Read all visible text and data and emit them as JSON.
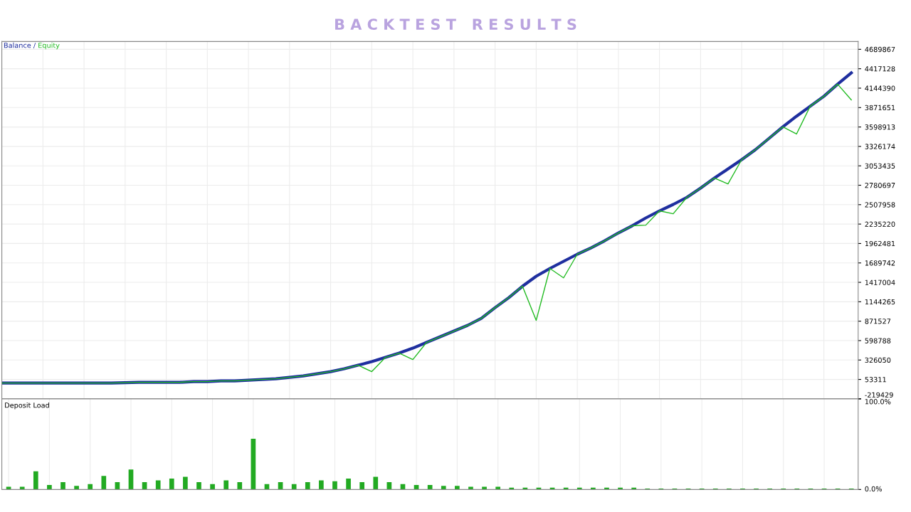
{
  "chart_data": [
    {
      "type": "line",
      "title": "B A C K T E S T   R E S U L T S",
      "categories": [
        null,
        null,
        null,
        null,
        null,
        null,
        null,
        null,
        null,
        null,
        null,
        null,
        null,
        null,
        null,
        null,
        null,
        null,
        null,
        null,
        null,
        null,
        null,
        null,
        null,
        null,
        null,
        null,
        null,
        null,
        null,
        null,
        null,
        null,
        null,
        null,
        null,
        null,
        null,
        null,
        null,
        null,
        null,
        null,
        null,
        null,
        null,
        null,
        null,
        null,
        null,
        null,
        null,
        null,
        null,
        null,
        null,
        null,
        null,
        null,
        null,
        null,
        null
      ],
      "series": [
        {
          "name": "Balance",
          "color": "#1f2f9f",
          "values": [
            3000,
            3000,
            3000,
            3000,
            3000,
            3000,
            3000,
            3000,
            3000,
            8000,
            13000,
            13000,
            13000,
            13000,
            23000,
            23000,
            33000,
            33000,
            43000,
            53000,
            63000,
            83000,
            103000,
            133000,
            163000,
            203000,
            253000,
            303000,
            363000,
            423000,
            493000,
            573000,
            653000,
            733000,
            813000,
            912000,
            1062000,
            1202000,
            1362000,
            1502000,
            1612000,
            1712000,
            1812000,
            1901000,
            2001000,
            2111000,
            2211000,
            2321000,
            2421000,
            2511000,
            2611000,
            2741000,
            2881000,
            3010000,
            3140000,
            3280000,
            3440000,
            3600000,
            3750000,
            3890000,
            4030000,
            4200000,
            4360000
          ]
        },
        {
          "name": "Equity",
          "color": "#22bb22",
          "values": [
            3000,
            3000,
            3000,
            3000,
            3000,
            3000,
            3000,
            3000,
            3000,
            8000,
            13000,
            13000,
            13000,
            13000,
            23000,
            23000,
            33000,
            33000,
            43000,
            53000,
            63000,
            83000,
            103000,
            133000,
            163000,
            203000,
            253000,
            163000,
            363000,
            423000,
            333000,
            573000,
            653000,
            733000,
            813000,
            912000,
            1062000,
            1202000,
            1362000,
            882000,
            1612000,
            1480000,
            1812000,
            1901000,
            2001000,
            2111000,
            2211000,
            2220000,
            2421000,
            2380000,
            2611000,
            2741000,
            2881000,
            2800000,
            3140000,
            3280000,
            3440000,
            3600000,
            3500000,
            3890000,
            4030000,
            4200000,
            3980000
          ]
        }
      ],
      "ylim": [
        -219429,
        4800000
      ],
      "yticks": [
        -219429,
        53311,
        326050,
        598788,
        871527,
        1144265,
        1417004,
        1689742,
        1962481,
        2235220,
        2507958,
        2780697,
        3053435,
        3326174,
        3598913,
        3871651,
        4144390,
        4417128,
        4689867
      ],
      "grid": true,
      "legend": "top left",
      "tick_labels": "y",
      "annotations": [
        "/"
      ]
    },
    {
      "type": "bar",
      "title": "Deposit Load",
      "categories": [
        null,
        null,
        null,
        null,
        null,
        null,
        null,
        null,
        null,
        null,
        null,
        null,
        null,
        null,
        null,
        null,
        null,
        null,
        null,
        null,
        null,
        null,
        null,
        null,
        null,
        null,
        null,
        null,
        null,
        null,
        null,
        null,
        null,
        null,
        null,
        null,
        null,
        null,
        null,
        null,
        null,
        null,
        null,
        null,
        null,
        null,
        null,
        null,
        null,
        null,
        null,
        null,
        null,
        null,
        null,
        null,
        null,
        null,
        null,
        null,
        null,
        null,
        null
      ],
      "values": [
        3,
        3,
        20,
        5,
        8,
        4,
        6,
        15,
        8,
        22,
        8,
        10,
        12,
        14,
        8,
        6,
        10,
        8,
        56,
        6,
        8,
        6,
        8,
        10,
        9,
        12,
        8,
        14,
        8,
        6,
        5,
        5,
        4,
        4,
        3,
        3,
        3,
        2,
        2,
        2,
        2,
        2,
        2,
        2,
        2,
        2,
        2,
        1,
        1,
        1,
        1,
        1,
        1,
        1,
        1,
        1,
        1,
        1,
        1,
        1,
        1,
        1,
        1
      ],
      "color": "#22aa22",
      "ylim": [
        0,
        100
      ],
      "yticks": [
        {
          "value": 0,
          "label": "0.0%"
        },
        {
          "value": 100,
          "label": "100.0%"
        }
      ],
      "grid": "x",
      "tick_labels": "y"
    }
  ]
}
